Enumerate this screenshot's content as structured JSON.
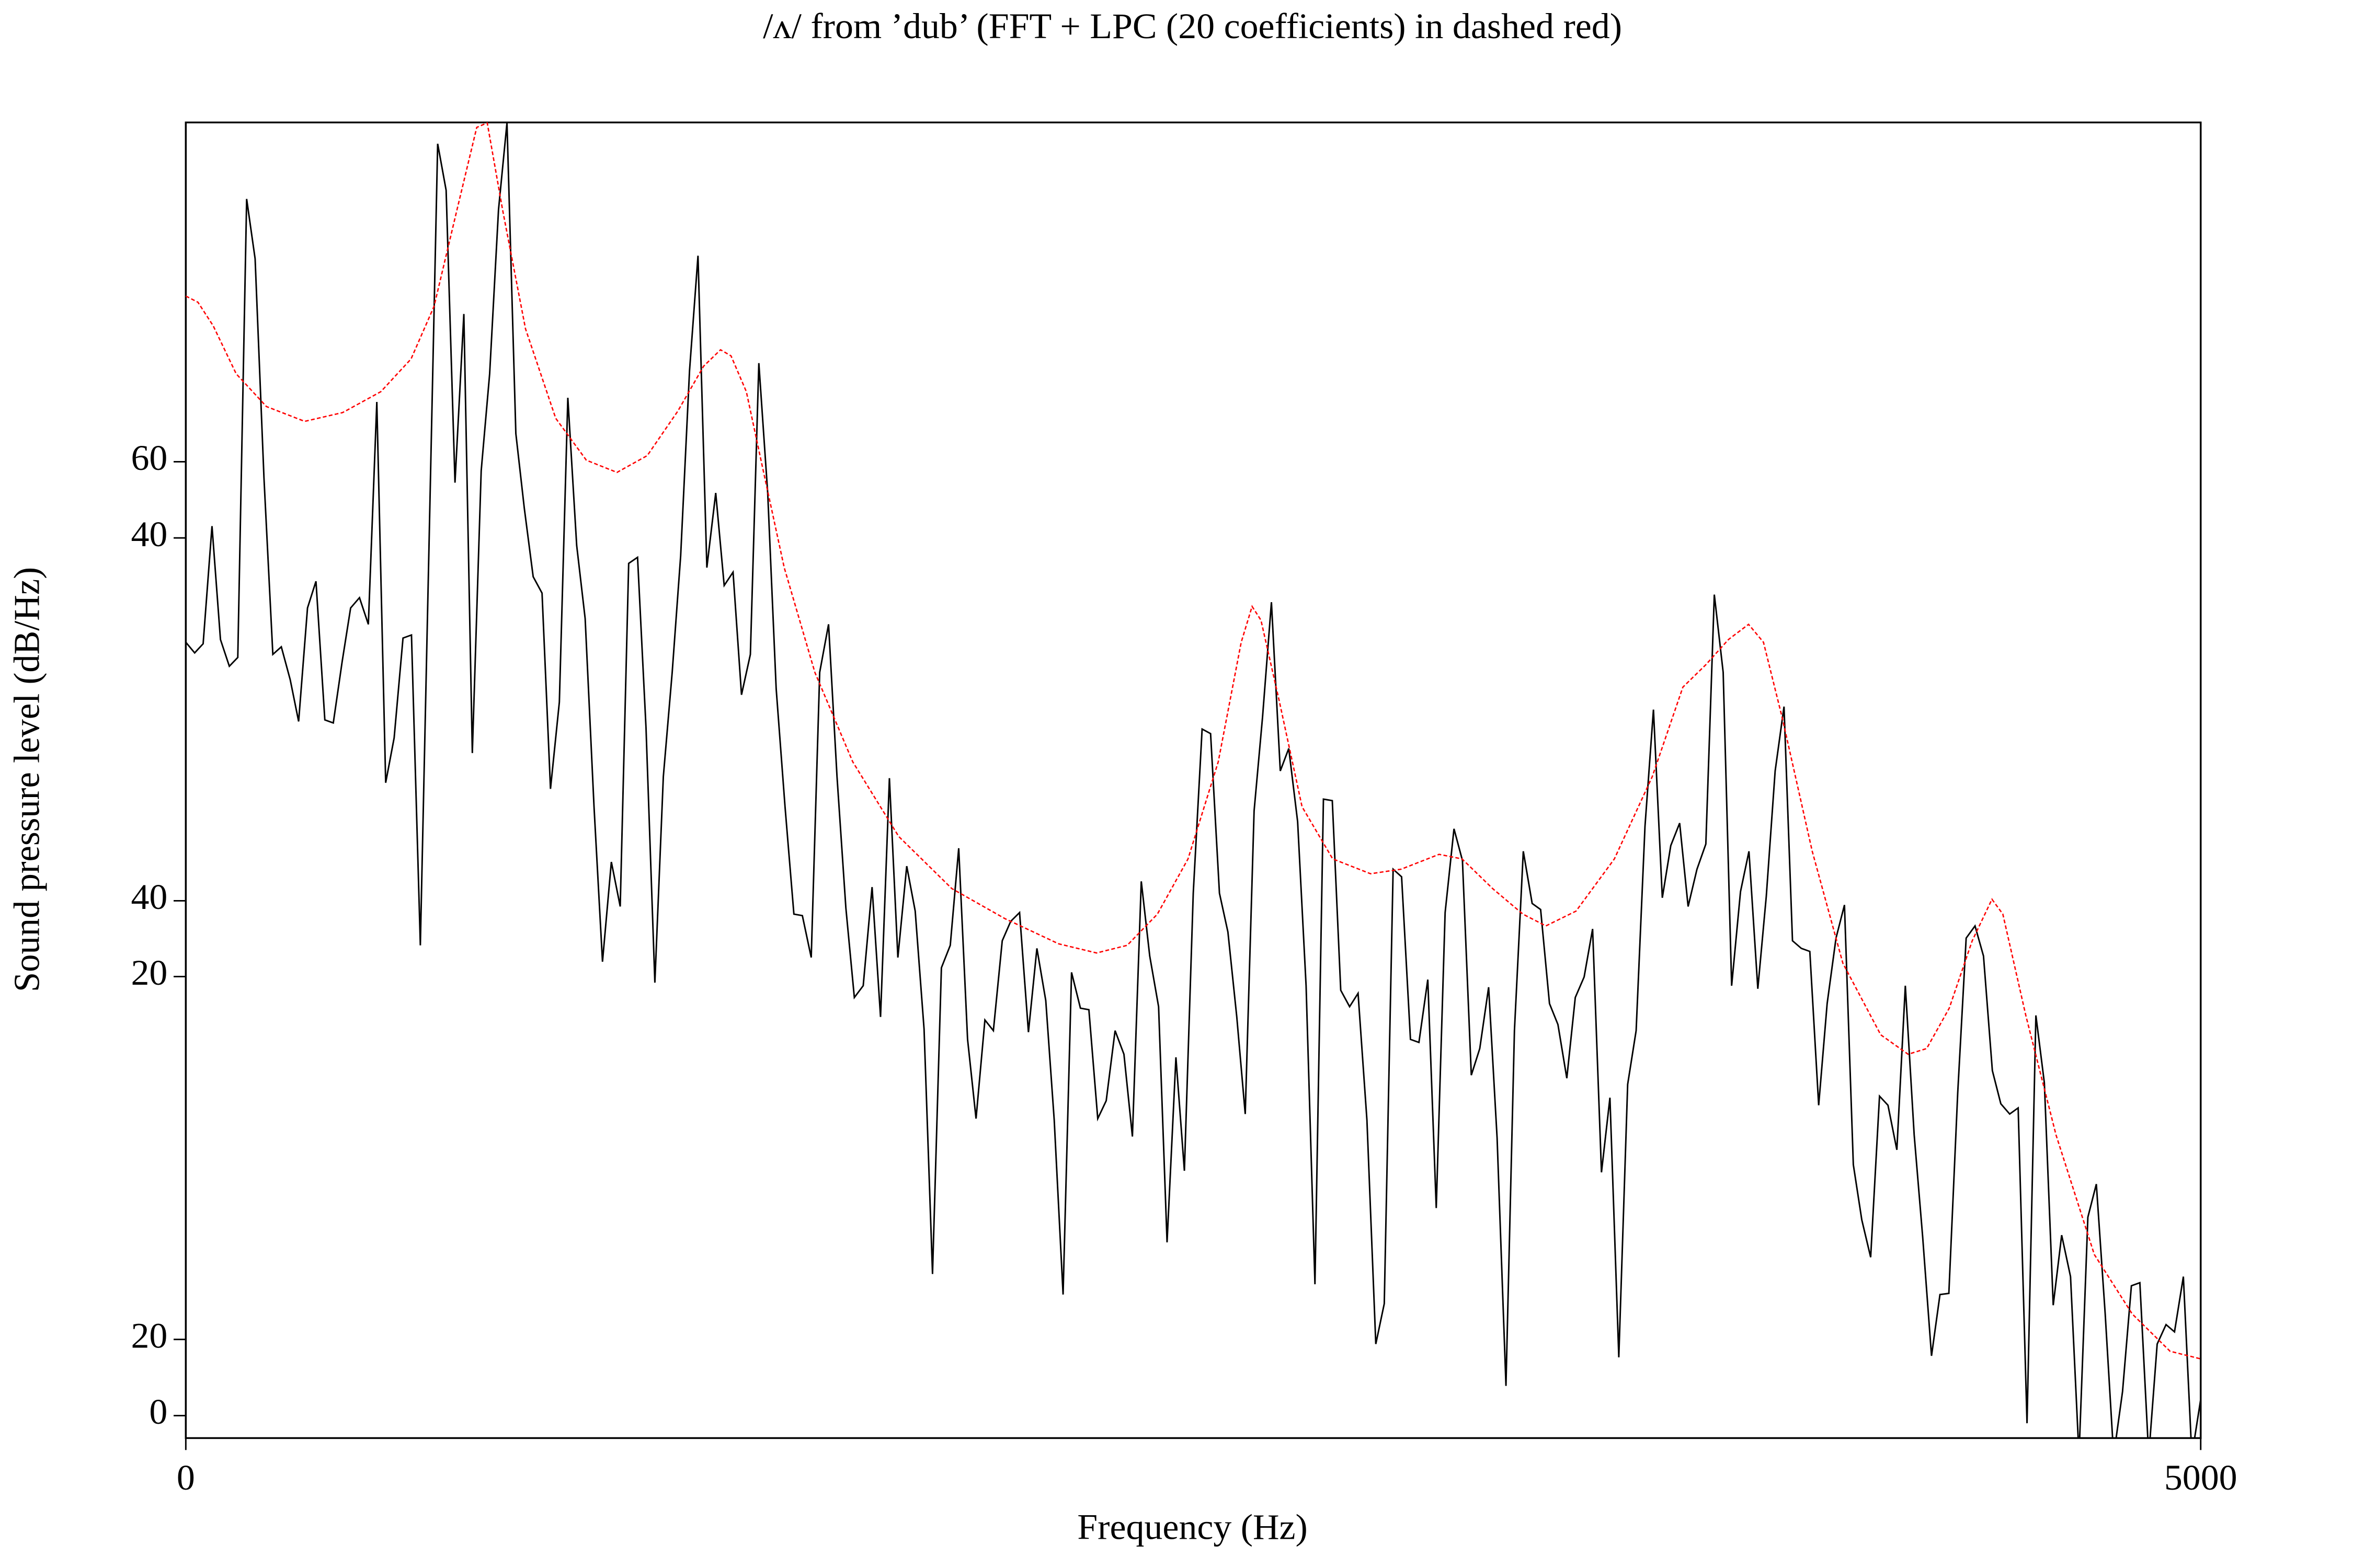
{
  "chart_data": {
    "type": "line",
    "title": "/ʌ/ from ’dub’ (FFT + LPC (20 coefficients) in dashed red)",
    "xlabel": "Frequency (Hz)",
    "ylabel": "Sound pressure level (dB/Hz)",
    "xlim": [
      0,
      5000
    ],
    "xticks": [
      0,
      5000
    ],
    "ylim": [
      -5.9,
      339.6
    ],
    "yticks": [
      0,
      20,
      {
        "value": 115.3,
        "label": "20"
      },
      {
        "value": 135.2,
        "label": "40"
      },
      {
        "value": 230.5,
        "label": "40"
      },
      {
        "value": 250.5,
        "label": "60"
      }
    ],
    "grid": false,
    "series": [
      {
        "color": "#000000",
        "dashed": false,
        "x": [
          0,
          22,
          43,
          65,
          86,
          108,
          129,
          151,
          172,
          194,
          216,
          237,
          259,
          280,
          302,
          323,
          345,
          366,
          388,
          409,
          431,
          453,
          474,
          496,
          517,
          539,
          560,
          582,
          603,
          625,
          646,
          668,
          690,
          711,
          733,
          754,
          776,
          797,
          819,
          840,
          862,
          884,
          905,
          927,
          948,
          970,
          991,
          1013,
          1034,
          1056,
          1078,
          1099,
          1121,
          1142,
          1164,
          1185,
          1207,
          1228,
          1250,
          1271,
          1293,
          1315,
          1336,
          1358,
          1379,
          1401,
          1422,
          1444,
          1465,
          1487,
          1509,
          1530,
          1552,
          1573,
          1595,
          1616,
          1638,
          1659,
          1681,
          1703,
          1724,
          1746,
          1767,
          1789,
          1810,
          1832,
          1853,
          1875,
          1897,
          1918,
          1940,
          1961,
          1983,
          2004,
          2026,
          2047,
          2069,
          2091,
          2112,
          2134,
          2155,
          2177,
          2198,
          2220,
          2241,
          2263,
          2284,
          2306,
          2328,
          2349,
          2371,
          2392,
          2414,
          2435,
          2457,
          2478,
          2500,
          2522,
          2543,
          2565,
          2586,
          2608,
          2629,
          2651,
          2672,
          2694,
          2716,
          2737,
          2759,
          2780,
          2802,
          2823,
          2845,
          2866,
          2888,
          2909,
          2931,
          2953,
          2974,
          2996,
          3017,
          3039,
          3060,
          3082,
          3103,
          3125,
          3147,
          3168,
          3190,
          3211,
          3233,
          3254,
          3276,
          3297,
          3319,
          3341,
          3362,
          3384,
          3405,
          3427,
          3448,
          3470,
          3491,
          3513,
          3534,
          3556,
          3578,
          3599,
          3621,
          3642,
          3664,
          3685,
          3707,
          3728,
          3750,
          3772,
          3793,
          3815,
          3836,
          3858,
          3879,
          3901,
          3922,
          3944,
          3966,
          3987,
          4009,
          4030,
          4052,
          4073,
          4095,
          4116,
          4138,
          4159,
          4181,
          4203,
          4224,
          4246,
          4267,
          4289,
          4310,
          4332,
          4353,
          4375,
          4397,
          4418,
          4440,
          4461,
          4483,
          4504,
          4526,
          4547,
          4569,
          4591,
          4612,
          4634,
          4655,
          4677,
          4698,
          4720,
          4741,
          4763,
          4784,
          4806,
          4828,
          4849,
          4871,
          4892,
          4914,
          4935,
          4957,
          4978,
          5000
        ],
        "values": [
          203.1,
          200.3,
          202.7,
          233.6,
          203.8,
          196.8,
          199.1,
          319.5,
          303.8,
          246.2,
          199.9,
          201.9,
          193.3,
          182.3,
          212.1,
          219.1,
          182.7,
          181.9,
          198.0,
          212.1,
          214.8,
          207.8,
          266.2,
          166.2,
          178.0,
          204.2,
          205.0,
          123.5,
          225.8,
          334.0,
          321.8,
          245.0,
          289.3,
          174.0,
          248.1,
          273.6,
          316.7,
          339.5,
          257.9,
          238.3,
          220.3,
          216.0,
          164.6,
          187.4,
          267.3,
          228.5,
          209.3,
          159.9,
          119.2,
          145.4,
          133.7,
          223.8,
          225.4,
          180.7,
          113.7,
          167.8,
          195.2,
          225.8,
          274.4,
          304.6,
          222.7,
          242.3,
          218.0,
          221.5,
          189.3,
          199.9,
          276.4,
          242.3,
          190.9,
          159.9,
          131.7,
          131.3,
          120.3,
          195.2,
          207.8,
          167.8,
          133.3,
          109.8,
          112.9,
          138.8,
          104.7,
          167.4,
          120.3,
          144.3,
          132.5,
          101.5,
          37.2,
          117.6,
          123.5,
          149.0,
          98.8,
          78.0,
          103.9,
          101.1,
          124.7,
          129.8,
          132.1,
          100.7,
          122.7,
          109.0,
          77.6,
          31.8,
          116.4,
          107.0,
          106.6,
          78.0,
          82.7,
          101.1,
          94.9,
          73.3,
          140.3,
          120.7,
          107.4,
          45.5,
          94.1,
          64.3,
          137.2,
          180.3,
          179.1,
          137.2,
          127.0,
          104.7,
          79.2,
          158.8,
          183.5,
          213.6,
          169.3,
          175.2,
          156.0,
          112.9,
          34.5,
          161.9,
          161.5,
          111.7,
          107.4,
          110.9,
          77.6,
          18.8,
          29.4,
          143.5,
          141.5,
          98.8,
          98.0,
          114.5,
          54.5,
          132.1,
          154.1,
          145.8,
          89.4,
          96.4,
          112.5,
          72.9,
          7.8,
          101.1,
          148.2,
          134.5,
          132.9,
          108.2,
          102.7,
          88.6,
          109.8,
          115.2,
          127.8,
          63.9,
          83.5,
          15.3,
          87.0,
          101.1,
          154.8,
          185.4,
          136.0,
          149.7,
          155.6,
          133.7,
          143.5,
          150.1,
          215.6,
          195.2,
          112.9,
          137.6,
          148.2,
          112.1,
          136.4,
          169.3,
          186.2,
          124.7,
          122.7,
          121.9,
          81.5,
          108.2,
          125.4,
          134.1,
          65.9,
          51.4,
          41.6,
          83.9,
          81.5,
          69.8,
          112.9,
          73.7,
          47.0,
          15.7,
          31.8,
          32.1,
          84.7,
          125.4,
          128.6,
          120.7,
          90.6,
          81.9,
          79.2,
          80.8,
          -2.0,
          105.1,
          87.4,
          29.0,
          47.4,
          36.5,
          -10.6,
          52.1,
          60.8,
          26.7,
          -10.6,
          6.3,
          34.1,
          34.9,
          -10.6,
          18.8,
          23.9,
          22.0,
          36.5,
          -10.6,
          4.3
        ]
      },
      {
        "color": "#ff0000",
        "dashed": true,
        "x": [
          0,
          30,
          68,
          125,
          200,
          295,
          389,
          484,
          559,
          616,
          673,
          722,
          748,
          786,
          843,
          918,
          994,
          1070,
          1145,
          1221,
          1285,
          1327,
          1353,
          1391,
          1429,
          1485,
          1561,
          1655,
          1769,
          1901,
          2033,
          2166,
          2260,
          2336,
          2411,
          2487,
          2562,
          2619,
          2646,
          2668,
          2714,
          2770,
          2846,
          2940,
          3016,
          3110,
          3167,
          3243,
          3318,
          3375,
          3450,
          3545,
          3639,
          3715,
          3772,
          3828,
          3878,
          3915,
          3961,
          4036,
          4112,
          4206,
          4274,
          4320,
          4376,
          4433,
          4482,
          4509,
          4566,
          4641,
          4736,
          4830,
          4924,
          5000
        ],
        "values": [
          294.0,
          292.4,
          286.2,
          273.6,
          265.0,
          261.1,
          263.4,
          268.9,
          277.5,
          291.3,
          316.7,
          338.3,
          339.5,
          316.7,
          285.4,
          261.9,
          250.9,
          247.7,
          252.1,
          263.8,
          275.6,
          279.9,
          278.3,
          268.9,
          250.1,
          222.7,
          195.2,
          171.7,
          152.1,
          138.4,
          130.5,
          123.9,
          121.5,
          123.5,
          131.7,
          146.2,
          171.7,
          203.1,
          212.5,
          208.9,
          187.4,
          159.9,
          146.2,
          142.3,
          143.5,
          147.4,
          146.2,
          138.4,
          131.7,
          128.6,
          132.5,
          146.2,
          167.8,
          191.3,
          197.2,
          203.8,
          207.8,
          203.1,
          183.5,
          148.2,
          118.8,
          100.0,
          94.9,
          96.4,
          107.0,
          124.7,
          135.6,
          131.7,
          105.1,
          73.7,
          42.3,
          26.7,
          16.9,
          14.9
        ]
      }
    ]
  }
}
